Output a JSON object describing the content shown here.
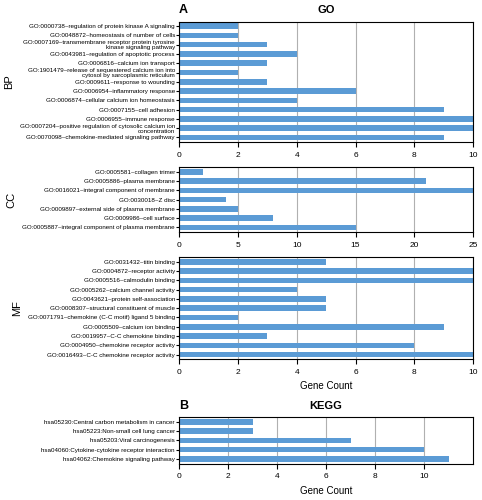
{
  "chart_data": [
    {
      "type": "bar",
      "orientation": "horizontal",
      "title": "GO",
      "annotations": [
        "A"
      ],
      "ylabel": "BP",
      "categories": [
        "GO:0000738~regulation of protein kinase A signaling",
        "GO:0048872~homeostasis of number of cells",
        "GO:0007169~transmembrane receptor protein tyrosine kinase signaling pathway",
        "GO:0043981~regulation of apoptotic process",
        "GO:0006816~calcium ion transport",
        "GO:1901479~release of sequestered calcium ion into cytosol by sarcoplasmic reticulum",
        "GO:0009611~response to wounding",
        "GO:0006954~inflammatory response",
        "GO:0006874~cellular calcium ion homeostasis",
        "GO:0007155~cell adhesion",
        "GO:0006955~immune response",
        "GO:0007204~positive regulation of cytosolic calcium ion concentration",
        "GO:0070098~chemokine-mediated signaling pathway"
      ],
      "values": [
        2,
        2,
        3,
        4,
        3,
        2,
        3,
        6,
        4,
        9,
        10,
        10,
        9
      ],
      "color": "#5b9bd5",
      "xlim": [
        0,
        10
      ],
      "xticks": [
        0,
        2,
        4,
        6,
        8,
        10
      ],
      "grid": true
    },
    {
      "type": "bar",
      "orientation": "horizontal",
      "ylabel": "CC",
      "categories": [
        "GO:0005581~collagen trimer",
        "GO:0005886~plasma membrane",
        "GO:0016021~integral component of membrane",
        "GO:0030018~Z disc",
        "GO:0009897~external side of plasma membrane",
        "GO:0009986~cell surface",
        "GO:0005887~integral component of plasma membrane"
      ],
      "values": [
        2,
        21,
        25,
        4,
        5,
        8,
        15
      ],
      "color": "#5b9bd5",
      "xlim": [
        0,
        25
      ],
      "xticks": [
        0,
        5,
        10,
        15,
        20,
        25
      ],
      "grid": true
    },
    {
      "type": "bar",
      "orientation": "horizontal",
      "ylabel": "MF",
      "xlabel": "Gene Count",
      "categories": [
        "GO:0031432~titin binding",
        "GO:0004872~receptor activity",
        "GO:0005516~calmodulin binding",
        "GO:0005262~calcium channel activity",
        "GO:0043621~protein self-association",
        "GO:0008307~structural constituent of muscle",
        "GO:0071791~chemokine (C-C motif) ligand 5 binding",
        "GO:0005509~calcium ion binding",
        "GO:0019957~C-C chemokine binding",
        "GO:0004950~chemokine receptor activity",
        "GO:0016493~C-C chemokine receptor activity"
      ],
      "values": [
        5,
        10,
        10,
        4,
        5,
        5,
        2,
        9,
        3,
        8,
        10
      ],
      "color": "#5b9bd5",
      "xlim": [
        0,
        10
      ],
      "xticks": [
        0,
        2,
        4,
        6,
        8,
        10
      ],
      "grid": true
    },
    {
      "type": "bar",
      "orientation": "horizontal",
      "title": "KEGG",
      "annotations": [
        "B"
      ],
      "xlabel": "Gene Count",
      "categories": [
        "hsa05230:Central carbon metabolism in cancer",
        "hsa05223:Non-small cell lung cancer",
        "hsa05203:Viral carcinogenesis",
        "hsa04060:Cytokine-cytokine receptor interaction",
        "hsa04062:Chemokine signaling pathway"
      ],
      "values": [
        3,
        3,
        7,
        10,
        11
      ],
      "color": "#5b9bd5",
      "xlim": [
        0,
        12
      ],
      "xticks": [
        0,
        2,
        4,
        6,
        8,
        10
      ],
      "grid": true
    }
  ]
}
